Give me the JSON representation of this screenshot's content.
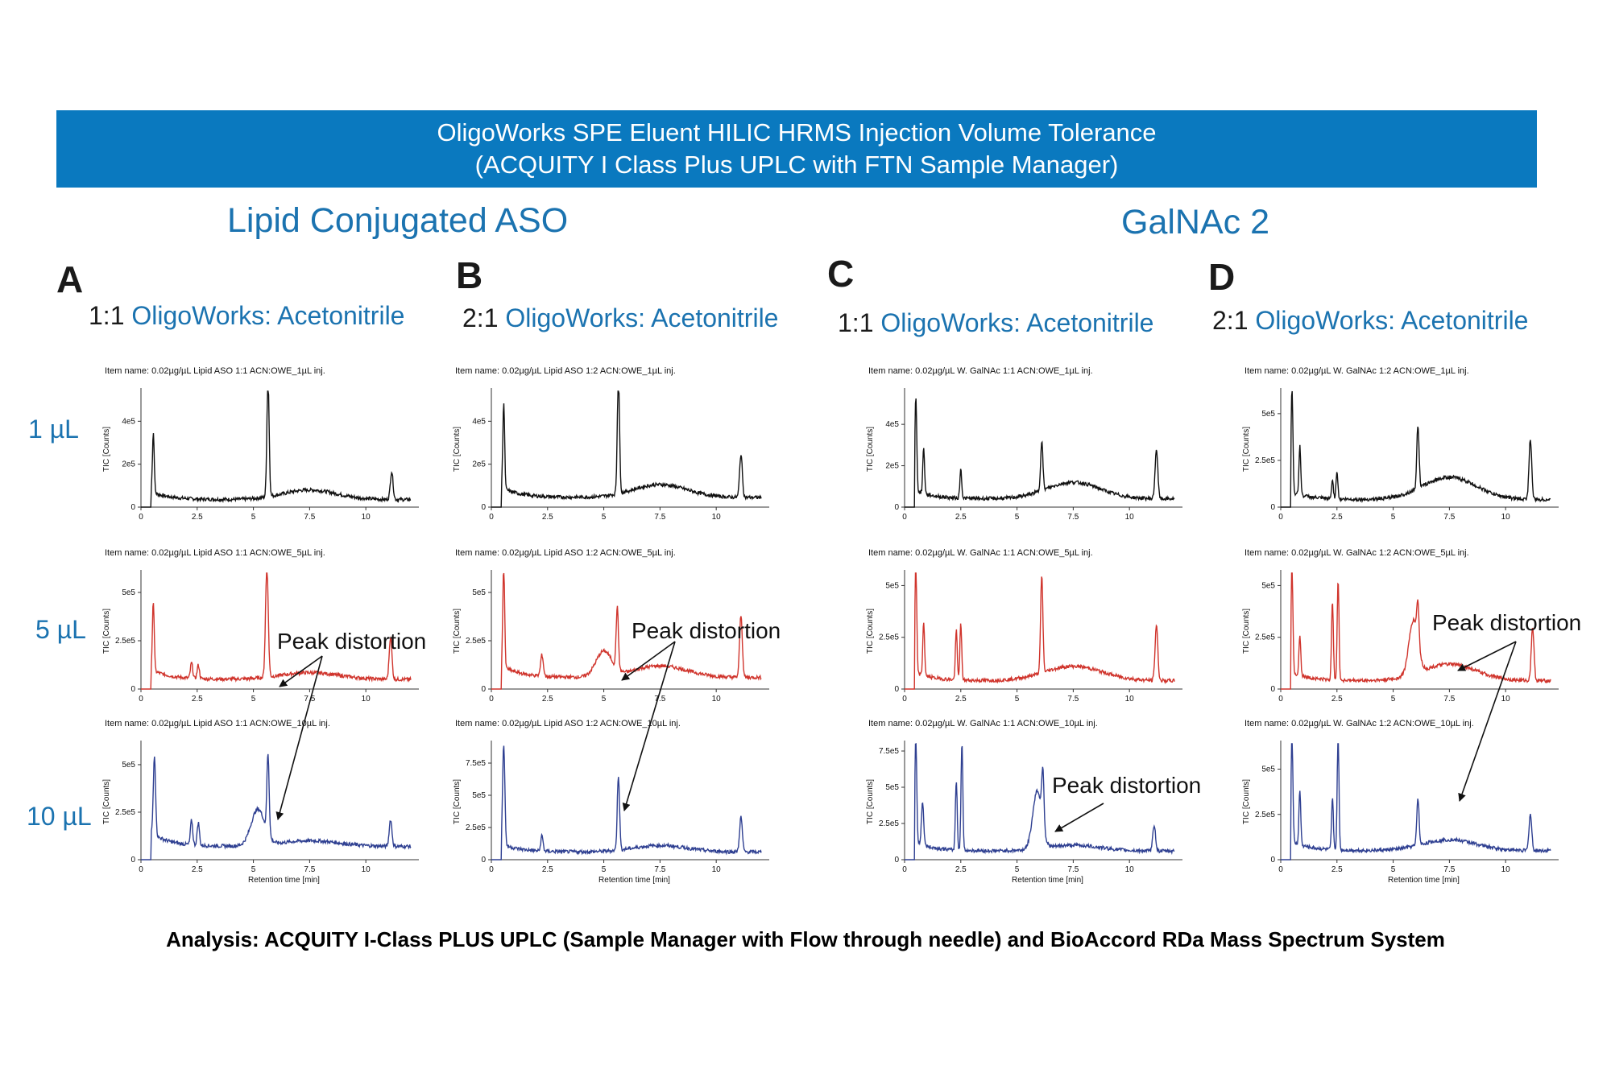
{
  "banner": {
    "line1": "OligoWorks SPE Eluent HILIC HRMS Injection Volume Tolerance",
    "line2": "(ACQUITY I Class Plus UPLC with FTN Sample Manager)"
  },
  "groups": [
    {
      "title": "Lipid Conjugated ASO"
    },
    {
      "title": "GalNAc 2"
    }
  ],
  "panels": [
    {
      "letter": "A",
      "ratio": "1:1",
      "ratio_label": "OligoWorks: Acetonitrile"
    },
    {
      "letter": "B",
      "ratio": "2:1",
      "ratio_label": "OligoWorks: Acetonitrile"
    },
    {
      "letter": "C",
      "ratio": "1:1",
      "ratio_label": "OligoWorks: Acetonitrile"
    },
    {
      "letter": "D",
      "ratio": "2:1",
      "ratio_label": "OligoWorks: Acetonitrile"
    }
  ],
  "volumes": [
    "1 µL",
    "5 µL",
    "10 µL"
  ],
  "annotation_label": "Peak distortion",
  "footer": "Analysis: ACQUITY I-Class PLUS UPLC (Sample Manager with Flow through needle) and BioAccord RDa Mass Spectrum System",
  "colors": {
    "banner": "#0a79bf",
    "accent": "#1b73b0",
    "trace_1uL": "#111111",
    "trace_5uL": "#d0342c",
    "trace_10uL": "#2e3f91"
  },
  "chart_data": {
    "type": "line",
    "xlabel": "Retention time [min]",
    "ylabel": "TIC [Counts]",
    "xlim": [
      0,
      12
    ],
    "xticks": [
      "0",
      "2.5",
      "5",
      "7.5",
      "10"
    ],
    "charts": [
      {
        "panel": "A",
        "volume": "1 µL",
        "item_name": "Item name: 0.02µg/µL Lipid ASO 1:1 ACN:OWE_1µL inj.",
        "ylim": [
          0,
          540000
        ],
        "yticks": [
          "0",
          "2e5",
          "4e5"
        ],
        "ytick_values": [
          0,
          200000,
          400000
        ],
        "peaks": [
          [
            0.55,
            280000,
            0.04
          ],
          [
            5.65,
            550000,
            0.05
          ],
          [
            7.5,
            45000,
            1.2
          ],
          [
            11.15,
            130000,
            0.06
          ]
        ],
        "baseline": 35000,
        "features": []
      },
      {
        "panel": "A",
        "volume": "5 µL",
        "item_name": "Item name: 0.02µg/µL Lipid ASO 1:1 ACN:OWE_5µL inj.",
        "ylim": [
          0,
          600000
        ],
        "yticks": [
          "0",
          "2.5e5",
          "5e5"
        ],
        "ytick_values": [
          0,
          250000,
          500000
        ],
        "peaks": [
          [
            0.55,
            360000,
            0.04
          ],
          [
            2.25,
            80000,
            0.05
          ],
          [
            2.55,
            70000,
            0.05
          ],
          [
            5.6,
            580000,
            0.06
          ],
          [
            7.5,
            35000,
            1.3
          ],
          [
            11.1,
            220000,
            0.06
          ]
        ],
        "baseline": 50000,
        "features": [
          "Peak distortion"
        ]
      },
      {
        "panel": "A",
        "volume": "10 µL",
        "item_name": "Item name: 0.02µg/µL Lipid ASO 1:1 ACN:OWE_10µL inj.",
        "ylim": [
          0,
          610000
        ],
        "yticks": [
          "0",
          "2.5e5",
          "5e5"
        ],
        "ytick_values": [
          0,
          250000,
          500000
        ],
        "peaks": [
          [
            0.6,
            420000,
            0.05
          ],
          [
            2.25,
            130000,
            0.05
          ],
          [
            2.55,
            120000,
            0.05
          ],
          [
            5.2,
            190000,
            0.3
          ],
          [
            5.65,
            420000,
            0.05
          ],
          [
            7.5,
            30000,
            1.3
          ],
          [
            11.1,
            140000,
            0.06
          ]
        ],
        "baseline": 70000,
        "features": [
          "Peak distortion"
        ]
      },
      {
        "panel": "B",
        "volume": "1 µL",
        "item_name": "Item name: 0.02µg/µL Lipid ASO 1:2 ACN:OWE_1µL inj.",
        "ylim": [
          0,
          540000
        ],
        "yticks": [
          "0",
          "2e5",
          "4e5"
        ],
        "ytick_values": [
          0,
          200000,
          400000
        ],
        "peaks": [
          [
            0.55,
            400000,
            0.04
          ],
          [
            5.65,
            540000,
            0.05
          ],
          [
            7.5,
            60000,
            1.2
          ],
          [
            11.1,
            200000,
            0.06
          ]
        ],
        "baseline": 45000,
        "features": []
      },
      {
        "panel": "B",
        "volume": "5 µL",
        "item_name": "Item name: 0.02µg/µL Lipid ASO 1:2 ACN:OWE_5µL inj.",
        "ylim": [
          0,
          600000
        ],
        "yticks": [
          "0",
          "2.5e5",
          "5e5"
        ],
        "ytick_values": [
          0,
          250000,
          500000
        ],
        "peaks": [
          [
            0.55,
            540000,
            0.04
          ],
          [
            2.25,
            110000,
            0.06
          ],
          [
            5.0,
            130000,
            0.35
          ],
          [
            5.6,
            320000,
            0.05
          ],
          [
            7.5,
            60000,
            1.2
          ],
          [
            11.1,
            320000,
            0.06
          ]
        ],
        "baseline": 60000,
        "features": [
          "Peak distortion"
        ]
      },
      {
        "panel": "B",
        "volume": "10 µL",
        "item_name": "Item name: 0.02µg/µL Lipid ASO 1:2 ACN:OWE_10µL inj.",
        "ylim": [
          0,
          900000
        ],
        "yticks": [
          "0",
          "2.5e5",
          "5e5",
          "7.5e5"
        ],
        "ytick_values": [
          0,
          250000,
          500000,
          750000
        ],
        "peaks": [
          [
            0.55,
            780000,
            0.05
          ],
          [
            2.25,
            120000,
            0.05
          ],
          [
            5.65,
            580000,
            0.05
          ],
          [
            7.5,
            50000,
            1.2
          ],
          [
            11.1,
            270000,
            0.06
          ]
        ],
        "baseline": 60000,
        "features": [
          "Peak distortion"
        ]
      },
      {
        "panel": "C",
        "volume": "1 µL",
        "item_name": "Item name: 0.02µg/µL W. GalNAc 1:1 ACN:OWE_1µL inj.",
        "ylim": [
          0,
          560000
        ],
        "yticks": [
          "0",
          "2e5",
          "4e5"
        ],
        "ytick_values": [
          0,
          200000,
          400000
        ],
        "peaks": [
          [
            0.5,
            460000,
            0.04
          ],
          [
            0.85,
            220000,
            0.04
          ],
          [
            2.5,
            140000,
            0.04
          ],
          [
            6.1,
            240000,
            0.05
          ],
          [
            7.5,
            80000,
            1.2
          ],
          [
            11.2,
            240000,
            0.06
          ]
        ],
        "baseline": 40000,
        "features": []
      },
      {
        "panel": "C",
        "volume": "5 µL",
        "item_name": "Item name: 0.02µg/µL W. GalNAc 1:1 ACN:OWE_5µL inj.",
        "ylim": [
          0,
          560000
        ],
        "yticks": [
          "0",
          "2.5e5",
          "5e5"
        ],
        "ytick_values": [
          0,
          250000,
          500000
        ],
        "peaks": [
          [
            0.5,
            520000,
            0.04
          ],
          [
            0.85,
            260000,
            0.04
          ],
          [
            2.3,
            240000,
            0.04
          ],
          [
            2.5,
            270000,
            0.04
          ],
          [
            6.1,
            470000,
            0.05
          ],
          [
            7.5,
            70000,
            1.3
          ],
          [
            11.2,
            270000,
            0.06
          ]
        ],
        "baseline": 40000,
        "features": []
      },
      {
        "panel": "C",
        "volume": "10 µL",
        "item_name": "Item name: 0.02µg/µL W. GalNAc 1:1 ACN:OWE_10µL inj.",
        "ylim": [
          0,
          800000
        ],
        "yticks": [
          "0",
          "2.5e5",
          "5e5",
          "7.5e5"
        ],
        "ytick_values": [
          0,
          250000,
          500000,
          750000
        ],
        "peaks": [
          [
            0.5,
            740000,
            0.04
          ],
          [
            0.8,
            300000,
            0.05
          ],
          [
            2.3,
            480000,
            0.04
          ],
          [
            2.55,
            740000,
            0.04
          ],
          [
            5.9,
            400000,
            0.2
          ],
          [
            6.15,
            380000,
            0.05
          ],
          [
            7.5,
            40000,
            1.2
          ],
          [
            11.1,
            180000,
            0.06
          ]
        ],
        "baseline": 60000,
        "features": [
          "Peak distortion"
        ]
      },
      {
        "panel": "D",
        "volume": "1 µL",
        "item_name": "Item name: 0.02µg/µL W. GalNAc 1:2 ACN:OWE_1µL inj.",
        "ylim": [
          0,
          620000
        ],
        "yticks": [
          "0",
          "2.5e5",
          "5e5"
        ],
        "ytick_values": [
          0,
          250000,
          500000
        ],
        "peaks": [
          [
            0.5,
            560000,
            0.04
          ],
          [
            0.85,
            260000,
            0.04
          ],
          [
            2.3,
            100000,
            0.04
          ],
          [
            2.5,
            150000,
            0.04
          ],
          [
            6.1,
            340000,
            0.05
          ],
          [
            7.5,
            120000,
            1.2
          ],
          [
            11.1,
            320000,
            0.06
          ]
        ],
        "baseline": 40000,
        "features": []
      },
      {
        "panel": "D",
        "volume": "5 µL",
        "item_name": "Item name: 0.02µg/µL W. GalNAc 1:2 ACN:OWE_5µL inj.",
        "ylim": [
          0,
          560000
        ],
        "yticks": [
          "0",
          "2.5e5",
          "5e5"
        ],
        "ytick_values": [
          0,
          250000,
          500000
        ],
        "peaks": [
          [
            0.5,
            520000,
            0.04
          ],
          [
            0.85,
            200000,
            0.04
          ],
          [
            2.3,
            380000,
            0.04
          ],
          [
            2.55,
            480000,
            0.04
          ],
          [
            5.9,
            260000,
            0.2
          ],
          [
            6.1,
            190000,
            0.05
          ],
          [
            7.5,
            80000,
            1.2
          ],
          [
            11.2,
            260000,
            0.06
          ]
        ],
        "baseline": 40000,
        "features": [
          "Peak distortion"
        ]
      },
      {
        "panel": "D",
        "volume": "10 µL",
        "item_name": "Item name: 0.02µg/µL W. GalNAc 1:2 ACN:OWE_10µL inj.",
        "ylim": [
          0,
          640000
        ],
        "yticks": [
          "0",
          "2.5e5",
          "5e5"
        ],
        "ytick_values": [
          0,
          250000,
          500000
        ],
        "peaks": [
          [
            0.5,
            600000,
            0.04
          ],
          [
            0.85,
            300000,
            0.04
          ],
          [
            2.3,
            280000,
            0.04
          ],
          [
            2.55,
            620000,
            0.04
          ],
          [
            6.1,
            260000,
            0.05
          ],
          [
            7.5,
            60000,
            1.2
          ],
          [
            11.1,
            200000,
            0.06
          ]
        ],
        "baseline": 50000,
        "features": [
          "Peak distortion"
        ]
      }
    ]
  }
}
